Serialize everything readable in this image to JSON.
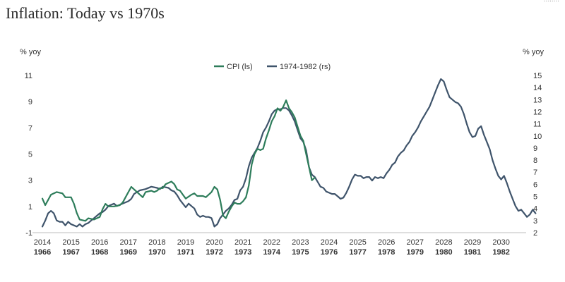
{
  "title": "Inflation: Today vs 1970s",
  "corner_text": "........",
  "colors": {
    "cpi": "#2e7d5b",
    "seventies": "#3f546b",
    "text": "#333333"
  },
  "chart_data": {
    "type": "line",
    "title": "Inflation: Today vs 1970s",
    "left_axis": {
      "label": "% yoy",
      "ticks": [
        11,
        9,
        7,
        5,
        3,
        1,
        -1
      ],
      "ylim": [
        -1,
        11
      ]
    },
    "right_axis": {
      "label": "% yoy",
      "ticks": [
        15,
        14,
        13,
        12,
        11,
        10,
        9,
        8,
        7,
        6,
        5,
        4,
        3,
        2
      ],
      "ylim": [
        2,
        15
      ]
    },
    "x_top_labels": [
      "2014",
      "2015",
      "2016",
      "2017",
      "2018",
      "2019",
      "2020",
      "2021",
      "2022",
      "2023",
      "2024",
      "2025",
      "2026",
      "2027",
      "2028",
      "2029",
      "2030"
    ],
    "x_bottom_labels": [
      "1966",
      "1967",
      "1968",
      "1969",
      "1970",
      "1971",
      "1972",
      "1973",
      "1974",
      "1975",
      "1976",
      "1977",
      "1978",
      "1979",
      "1980",
      "1981",
      "1982"
    ],
    "legend_position": "top-center",
    "grid": false,
    "series": [
      {
        "name": "CPI (ls)",
        "axis": "left",
        "points": [
          [
            2014.0,
            1.6
          ],
          [
            2014.1,
            1.1
          ],
          [
            2014.3,
            1.9
          ],
          [
            2014.5,
            2.1
          ],
          [
            2014.7,
            2.0
          ],
          [
            2014.8,
            1.7
          ],
          [
            2015.0,
            1.7
          ],
          [
            2015.1,
            1.2
          ],
          [
            2015.2,
            0.5
          ],
          [
            2015.3,
            0.0
          ],
          [
            2015.5,
            -0.1
          ],
          [
            2015.6,
            0.1
          ],
          [
            2015.8,
            0.0
          ],
          [
            2016.0,
            0.2
          ],
          [
            2016.1,
            0.8
          ],
          [
            2016.2,
            1.2
          ],
          [
            2016.3,
            1.0
          ],
          [
            2016.5,
            1.0
          ],
          [
            2016.7,
            1.1
          ],
          [
            2016.8,
            1.3
          ],
          [
            2017.0,
            2.1
          ],
          [
            2017.1,
            2.5
          ],
          [
            2017.2,
            2.3
          ],
          [
            2017.4,
            1.9
          ],
          [
            2017.5,
            1.7
          ],
          [
            2017.6,
            2.1
          ],
          [
            2017.8,
            2.2
          ],
          [
            2017.9,
            2.1
          ],
          [
            2018.0,
            2.2
          ],
          [
            2018.1,
            2.4
          ],
          [
            2018.2,
            2.4
          ],
          [
            2018.3,
            2.7
          ],
          [
            2018.4,
            2.8
          ],
          [
            2018.5,
            2.9
          ],
          [
            2018.6,
            2.7
          ],
          [
            2018.7,
            2.3
          ],
          [
            2018.8,
            2.2
          ],
          [
            2018.9,
            1.9
          ],
          [
            2019.0,
            1.6
          ],
          [
            2019.2,
            1.9
          ],
          [
            2019.3,
            2.0
          ],
          [
            2019.4,
            1.8
          ],
          [
            2019.6,
            1.8
          ],
          [
            2019.7,
            1.7
          ],
          [
            2019.9,
            2.1
          ],
          [
            2020.0,
            2.5
          ],
          [
            2020.1,
            2.3
          ],
          [
            2020.2,
            1.5
          ],
          [
            2020.3,
            0.3
          ],
          [
            2020.4,
            0.1
          ],
          [
            2020.5,
            0.6
          ],
          [
            2020.6,
            1.0
          ],
          [
            2020.7,
            1.3
          ],
          [
            2020.8,
            1.2
          ],
          [
            2020.9,
            1.2
          ],
          [
            2021.0,
            1.4
          ],
          [
            2021.1,
            1.7
          ],
          [
            2021.2,
            2.6
          ],
          [
            2021.3,
            4.2
          ],
          [
            2021.4,
            5.0
          ],
          [
            2021.5,
            5.4
          ],
          [
            2021.6,
            5.3
          ],
          [
            2021.7,
            5.4
          ],
          [
            2021.8,
            6.2
          ],
          [
            2021.9,
            6.8
          ],
          [
            2022.0,
            7.5
          ],
          [
            2022.1,
            7.9
          ],
          [
            2022.2,
            8.5
          ],
          [
            2022.3,
            8.3
          ],
          [
            2022.4,
            8.6
          ],
          [
            2022.5,
            9.1
          ],
          [
            2022.6,
            8.5
          ],
          [
            2022.7,
            8.2
          ],
          [
            2022.8,
            7.8
          ],
          [
            2022.9,
            7.1
          ],
          [
            2023.0,
            6.4
          ],
          [
            2023.1,
            6.0
          ],
          [
            2023.2,
            5.0
          ],
          [
            2023.3,
            4.0
          ],
          [
            2023.4,
            3.0
          ],
          [
            2023.5,
            3.2
          ]
        ]
      },
      {
        "name": "1974-1982 (rs)",
        "axis": "right",
        "points": [
          [
            2014.0,
            2.5
          ],
          [
            2014.1,
            3.0
          ],
          [
            2014.2,
            3.6
          ],
          [
            2014.3,
            3.8
          ],
          [
            2014.4,
            3.6
          ],
          [
            2014.5,
            3.0
          ],
          [
            2014.6,
            2.9
          ],
          [
            2014.7,
            2.9
          ],
          [
            2014.8,
            2.6
          ],
          [
            2014.9,
            2.9
          ],
          [
            2015.0,
            2.7
          ],
          [
            2015.1,
            2.6
          ],
          [
            2015.2,
            2.5
          ],
          [
            2015.3,
            2.7
          ],
          [
            2015.4,
            2.5
          ],
          [
            2015.5,
            2.7
          ],
          [
            2015.6,
            2.8
          ],
          [
            2015.8,
            3.2
          ],
          [
            2016.0,
            3.6
          ],
          [
            2016.1,
            3.7
          ],
          [
            2016.2,
            3.9
          ],
          [
            2016.3,
            4.2
          ],
          [
            2016.4,
            4.3
          ],
          [
            2016.5,
            4.4
          ],
          [
            2016.6,
            4.2
          ],
          [
            2016.8,
            4.4
          ],
          [
            2017.0,
            4.6
          ],
          [
            2017.1,
            4.8
          ],
          [
            2017.2,
            5.2
          ],
          [
            2017.4,
            5.5
          ],
          [
            2017.6,
            5.6
          ],
          [
            2017.8,
            5.8
          ],
          [
            2018.0,
            5.7
          ],
          [
            2018.1,
            5.6
          ],
          [
            2018.2,
            5.8
          ],
          [
            2018.4,
            5.7
          ],
          [
            2018.5,
            5.5
          ],
          [
            2018.6,
            5.4
          ],
          [
            2018.7,
            5.1
          ],
          [
            2018.8,
            4.7
          ],
          [
            2018.9,
            4.4
          ],
          [
            2019.0,
            4.1
          ],
          [
            2019.1,
            4.4
          ],
          [
            2019.2,
            4.2
          ],
          [
            2019.3,
            4.0
          ],
          [
            2019.4,
            3.5
          ],
          [
            2019.5,
            3.3
          ],
          [
            2019.6,
            3.4
          ],
          [
            2019.7,
            3.3
          ],
          [
            2019.8,
            3.3
          ],
          [
            2019.9,
            3.2
          ],
          [
            2020.0,
            2.5
          ],
          [
            2020.1,
            2.7
          ],
          [
            2020.2,
            3.2
          ],
          [
            2020.3,
            3.5
          ],
          [
            2020.4,
            3.8
          ],
          [
            2020.5,
            4.0
          ],
          [
            2020.6,
            4.3
          ],
          [
            2020.7,
            4.7
          ],
          [
            2020.8,
            4.8
          ],
          [
            2020.9,
            5.5
          ],
          [
            2021.0,
            5.8
          ],
          [
            2021.1,
            6.5
          ],
          [
            2021.2,
            7.5
          ],
          [
            2021.3,
            8.2
          ],
          [
            2021.4,
            8.6
          ],
          [
            2021.5,
            9.0
          ],
          [
            2021.6,
            9.6
          ],
          [
            2021.7,
            10.3
          ],
          [
            2021.8,
            10.7
          ],
          [
            2021.9,
            11.2
          ],
          [
            2022.0,
            11.8
          ],
          [
            2022.1,
            12.1
          ],
          [
            2022.2,
            12.2
          ],
          [
            2022.3,
            12.2
          ],
          [
            2022.4,
            12.3
          ],
          [
            2022.5,
            12.3
          ],
          [
            2022.6,
            12.1
          ],
          [
            2022.7,
            11.7
          ],
          [
            2022.8,
            11.2
          ],
          [
            2022.9,
            10.5
          ],
          [
            2023.0,
            9.8
          ],
          [
            2023.1,
            9.5
          ],
          [
            2023.2,
            8.8
          ],
          [
            2023.3,
            7.4
          ],
          [
            2023.4,
            6.8
          ],
          [
            2023.5,
            6.6
          ],
          [
            2023.6,
            6.2
          ],
          [
            2023.7,
            5.8
          ],
          [
            2023.8,
            5.7
          ],
          [
            2023.9,
            5.4
          ],
          [
            2024.0,
            5.3
          ],
          [
            2024.1,
            5.2
          ],
          [
            2024.2,
            5.2
          ],
          [
            2024.3,
            5.0
          ],
          [
            2024.4,
            4.8
          ],
          [
            2024.5,
            4.9
          ],
          [
            2024.6,
            5.3
          ],
          [
            2024.7,
            5.8
          ],
          [
            2024.8,
            6.4
          ],
          [
            2024.9,
            6.8
          ],
          [
            2025.0,
            6.7
          ],
          [
            2025.1,
            6.7
          ],
          [
            2025.2,
            6.5
          ],
          [
            2025.3,
            6.6
          ],
          [
            2025.4,
            6.6
          ],
          [
            2025.5,
            6.3
          ],
          [
            2025.6,
            6.6
          ],
          [
            2025.7,
            6.5
          ],
          [
            2025.8,
            6.6
          ],
          [
            2025.9,
            6.5
          ],
          [
            2026.0,
            6.9
          ],
          [
            2026.1,
            7.2
          ],
          [
            2026.2,
            7.6
          ],
          [
            2026.3,
            7.8
          ],
          [
            2026.4,
            8.3
          ],
          [
            2026.5,
            8.6
          ],
          [
            2026.6,
            8.8
          ],
          [
            2026.7,
            9.2
          ],
          [
            2026.8,
            9.5
          ],
          [
            2026.9,
            10.0
          ],
          [
            2027.0,
            10.3
          ],
          [
            2027.1,
            10.7
          ],
          [
            2027.2,
            11.2
          ],
          [
            2027.3,
            11.6
          ],
          [
            2027.4,
            12.0
          ],
          [
            2027.5,
            12.4
          ],
          [
            2027.6,
            13.0
          ],
          [
            2027.7,
            13.6
          ],
          [
            2027.8,
            14.2
          ],
          [
            2027.9,
            14.7
          ],
          [
            2028.0,
            14.5
          ],
          [
            2028.1,
            13.8
          ],
          [
            2028.2,
            13.2
          ],
          [
            2028.3,
            13.0
          ],
          [
            2028.4,
            12.8
          ],
          [
            2028.5,
            12.7
          ],
          [
            2028.6,
            12.4
          ],
          [
            2028.7,
            11.8
          ],
          [
            2028.8,
            11.0
          ],
          [
            2028.9,
            10.3
          ],
          [
            2029.0,
            9.9
          ],
          [
            2029.1,
            10.0
          ],
          [
            2029.2,
            10.6
          ],
          [
            2029.3,
            10.8
          ],
          [
            2029.4,
            10.1
          ],
          [
            2029.5,
            9.5
          ],
          [
            2029.6,
            8.9
          ],
          [
            2029.7,
            8.0
          ],
          [
            2029.8,
            7.3
          ],
          [
            2029.9,
            6.7
          ],
          [
            2030.0,
            6.4
          ],
          [
            2030.1,
            6.7
          ],
          [
            2030.2,
            6.1
          ],
          [
            2030.3,
            5.4
          ],
          [
            2030.4,
            4.8
          ],
          [
            2030.5,
            4.2
          ],
          [
            2030.6,
            3.8
          ],
          [
            2030.7,
            3.9
          ],
          [
            2030.8,
            3.6
          ],
          [
            2030.9,
            3.3
          ],
          [
            2031.0,
            3.5
          ],
          [
            2031.1,
            3.9
          ],
          [
            2031.2,
            3.6
          ]
        ]
      }
    ]
  }
}
